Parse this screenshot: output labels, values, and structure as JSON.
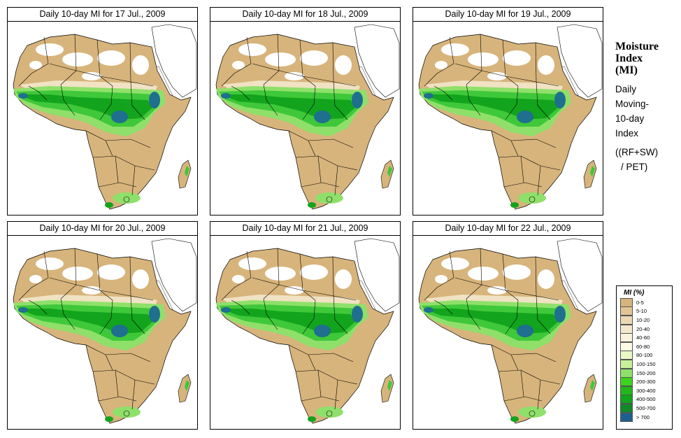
{
  "colors": {
    "land": "#d7b47b",
    "light_tan": "#f0e2c3",
    "white_desert": "#ffffff",
    "green_light": "#8fe06a",
    "green_mid": "#3fc83a",
    "green_dark": "#12a41c",
    "deep_blue": "#1f6f8f"
  },
  "panels": [
    {
      "title": "Daily 10-day MI for  17 Jul., 2009"
    },
    {
      "title": "Daily 10-day MI for  18 Jul., 2009"
    },
    {
      "title": "Daily 10-day MI for  19 Jul., 2009"
    },
    {
      "title": "Daily 10-day MI for  20 Jul., 2009"
    },
    {
      "title": "Daily 10-day MI for  21 Jul., 2009"
    },
    {
      "title": "Daily 10-day MI for  22 Jul., 2009"
    }
  ],
  "side": {
    "title_1": "Moisture",
    "title_2": "Index",
    "title_3": "(MI)",
    "line_1": "Daily",
    "line_2": "Moving-",
    "line_3": "10-day",
    "line_4": "Index",
    "formula_1": "((RF+SW)",
    "formula_2": "/ PET)"
  },
  "legend": {
    "title": "MI (%)",
    "items": [
      {
        "label": "0-5",
        "color": "#d7b47b"
      },
      {
        "label": "5-10",
        "color": "#e2c594"
      },
      {
        "label": "10-20",
        "color": "#ecd8b2"
      },
      {
        "label": "20-40",
        "color": "#f4e8cc"
      },
      {
        "label": "40-60",
        "color": "#f9f2dd"
      },
      {
        "label": "60-80",
        "color": "#fdfbe6"
      },
      {
        "label": "80-100",
        "color": "#e9f9c4"
      },
      {
        "label": "100-150",
        "color": "#c8f09a"
      },
      {
        "label": "150-200",
        "color": "#8fe06a"
      },
      {
        "label": "200-300",
        "color": "#3fd21e"
      },
      {
        "label": "300-400",
        "color": "#22b81a"
      },
      {
        "label": "400-500",
        "color": "#12a41c"
      },
      {
        "label": "500-700",
        "color": "#0f8a2a"
      },
      {
        "label": "> 700",
        "color": "#1f5f8f"
      }
    ]
  }
}
